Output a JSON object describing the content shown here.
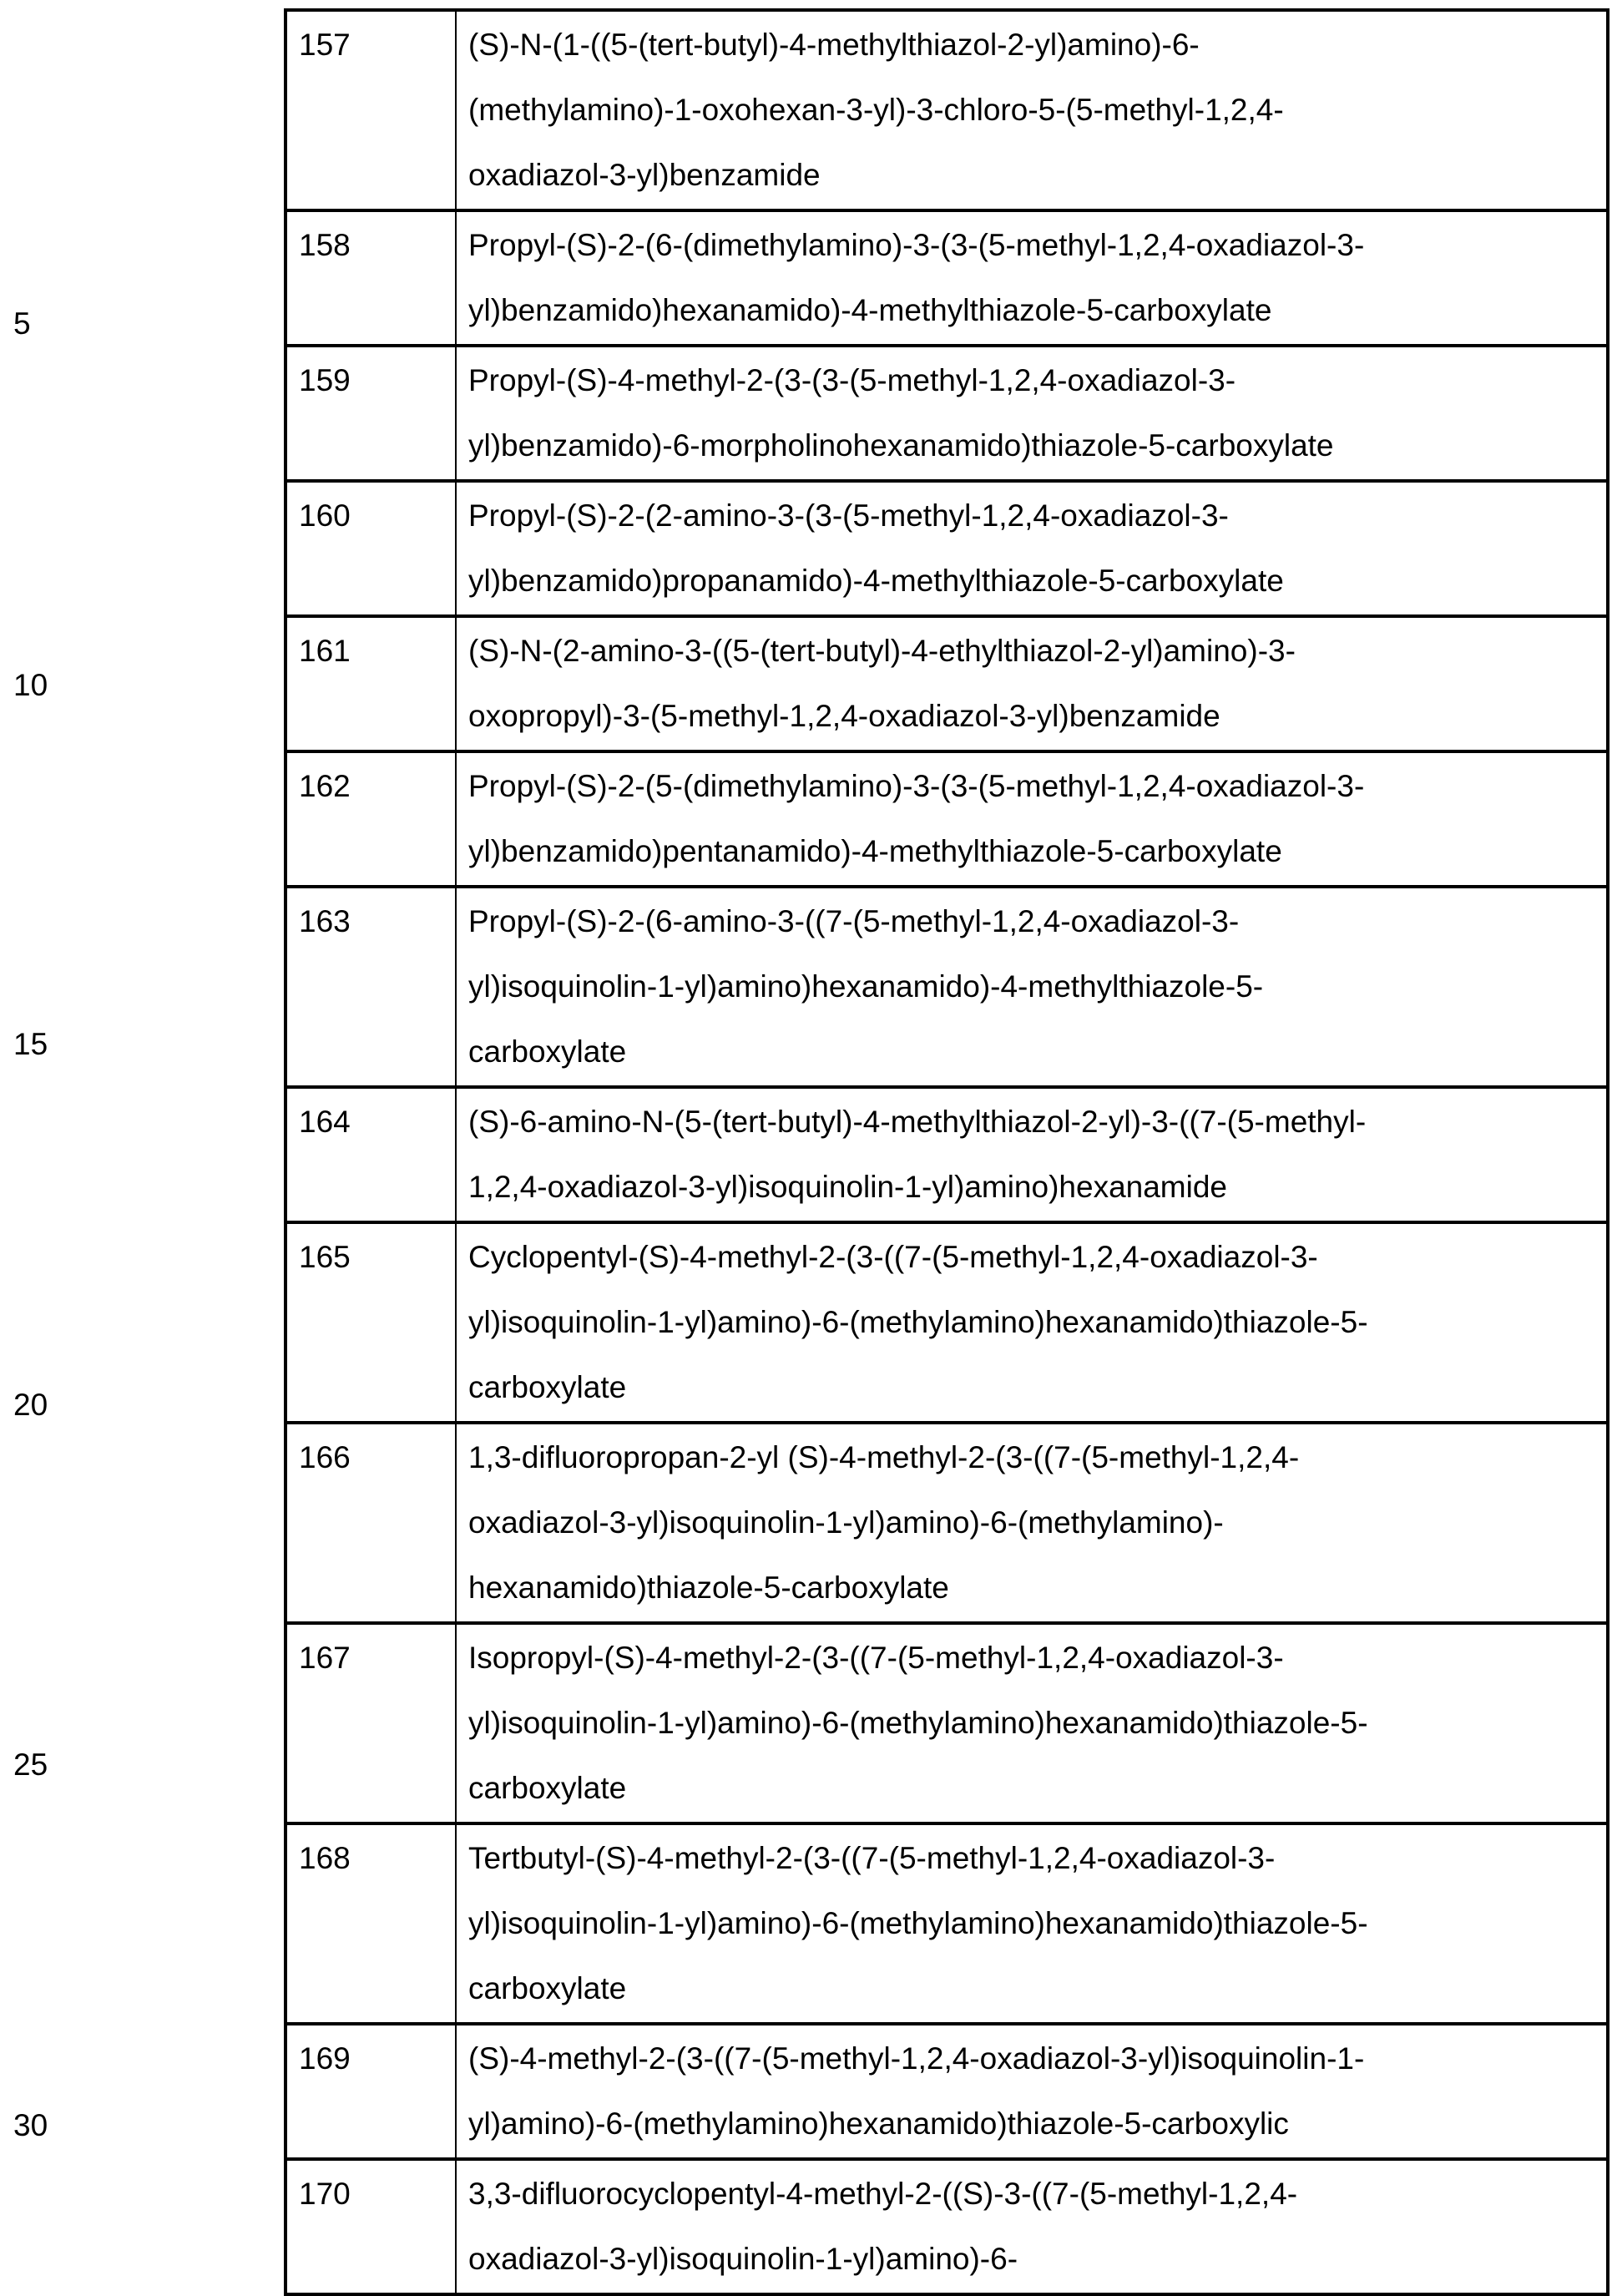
{
  "line_numbers": [
    "5",
    "10",
    "15",
    "20",
    "25",
    "30"
  ],
  "rows": [
    {
      "no": "157",
      "lines": [
        "(S)-N-(1-((5-(tert-butyl)-4-methylthiazol-2-yl)amino)-6-",
        "(methylamino)-1-oxohexan-3-yl)-3-chloro-5-(5-methyl-1,2,4-",
        "oxadiazol-3-yl)benzamide"
      ]
    },
    {
      "no": "158",
      "lines": [
        "Propyl-(S)-2-(6-(dimethylamino)-3-(3-(5-methyl-1,2,4-oxadiazol-3-",
        "yl)benzamido)hexanamido)-4-methylthiazole-5-carboxylate"
      ]
    },
    {
      "no": "159",
      "lines": [
        "Propyl-(S)-4-methyl-2-(3-(3-(5-methyl-1,2,4-oxadiazol-3-",
        "yl)benzamido)-6-morpholinohexanamido)thiazole-5-carboxylate"
      ]
    },
    {
      "no": "160",
      "lines": [
        "Propyl-(S)-2-(2-amino-3-(3-(5-methyl-1,2,4-oxadiazol-3-",
        "yl)benzamido)propanamido)-4-methylthiazole-5-carboxylate"
      ]
    },
    {
      "no": "161",
      "lines": [
        "(S)-N-(2-amino-3-((5-(tert-butyl)-4-ethylthiazol-2-yl)amino)-3-",
        "oxopropyl)-3-(5-methyl-1,2,4-oxadiazol-3-yl)benzamide"
      ]
    },
    {
      "no": "162",
      "lines": [
        "Propyl-(S)-2-(5-(dimethylamino)-3-(3-(5-methyl-1,2,4-oxadiazol-3-",
        "yl)benzamido)pentanamido)-4-methylthiazole-5-carboxylate"
      ]
    },
    {
      "no": "163",
      "lines": [
        "Propyl-(S)-2-(6-amino-3-((7-(5-methyl-1,2,4-oxadiazol-3-",
        "yl)isoquinolin-1-yl)amino)hexanamido)-4-methylthiazole-5-",
        "carboxylate"
      ]
    },
    {
      "no": "164",
      "lines": [
        "(S)-6-amino-N-(5-(tert-butyl)-4-methylthiazol-2-yl)-3-((7-(5-methyl-",
        "1,2,4-oxadiazol-3-yl)isoquinolin-1-yl)amino)hexanamide"
      ]
    },
    {
      "no": "165",
      "lines": [
        "Cyclopentyl-(S)-4-methyl-2-(3-((7-(5-methyl-1,2,4-oxadiazol-3-",
        "yl)isoquinolin-1-yl)amino)-6-(methylamino)hexanamido)thiazole-5-",
        "carboxylate"
      ]
    },
    {
      "no": "166",
      "lines": [
        "1,3-difluoropropan-2-yl (S)-4-methyl-2-(3-((7-(5-methyl-1,2,4-",
        "oxadiazol-3-yl)isoquinolin-1-yl)amino)-6-(methylamino)-",
        "hexanamido)thiazole-5-carboxylate"
      ]
    },
    {
      "no": "167",
      "lines": [
        "Isopropyl-(S)-4-methyl-2-(3-((7-(5-methyl-1,2,4-oxadiazol-3-",
        "yl)isoquinolin-1-yl)amino)-6-(methylamino)hexanamido)thiazole-5-",
        "carboxylate"
      ]
    },
    {
      "no": "168",
      "lines": [
        "Tertbutyl-(S)-4-methyl-2-(3-((7-(5-methyl-1,2,4-oxadiazol-3-",
        "yl)isoquinolin-1-yl)amino)-6-(methylamino)hexanamido)thiazole-5-",
        "carboxylate"
      ]
    },
    {
      "no": "169",
      "lines": [
        "(S)-4-methyl-2-(3-((7-(5-methyl-1,2,4-oxadiazol-3-yl)isoquinolin-1-",
        "yl)amino)-6-(methylamino)hexanamido)thiazole-5-carboxylic"
      ]
    },
    {
      "no": "170",
      "lines": [
        "3,3-difluorocyclopentyl-4-methyl-2-((S)-3-((7-(5-methyl-1,2,4-",
        "oxadiazol-3-yl)isoquinolin-1-yl)amino)-6-"
      ]
    }
  ]
}
